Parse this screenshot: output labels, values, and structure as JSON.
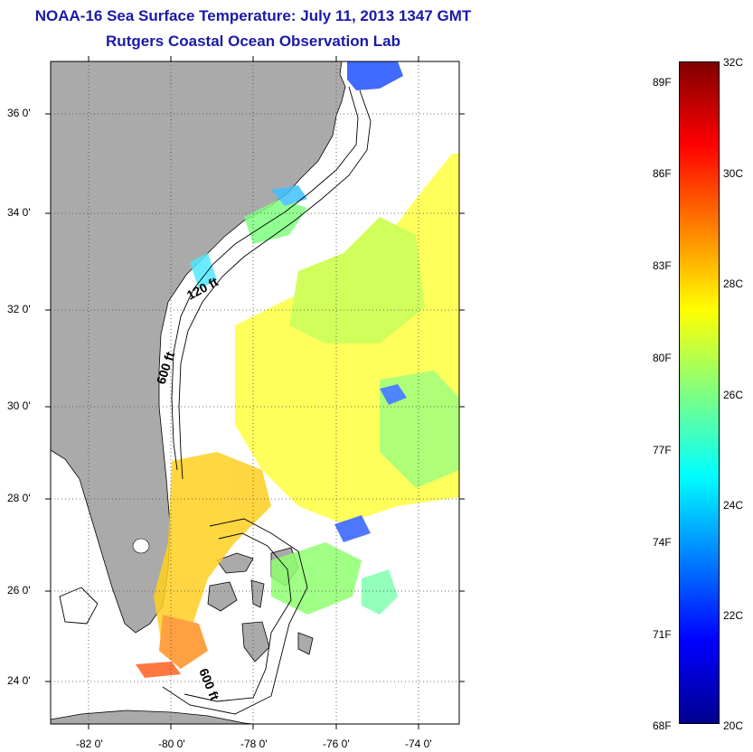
{
  "title": "NOAA-16 Sea Surface Temperature:  July 11, 2013 1347 GMT",
  "subtitle": "Rutgers Coastal Ocean Observation Lab",
  "map": {
    "lat_ticks": [
      "36 0'",
      "34 0'",
      "32 0'",
      "30 0'",
      "28 0'",
      "26 0'",
      "24 0'"
    ],
    "lon_ticks": [
      "-82 0'",
      "-80 0'",
      "-78 0'",
      "-76 0'",
      "-74 0'"
    ],
    "contour_labels": {
      "shelf_120": "120 ft",
      "shelf_600": "600 ft",
      "bahamas_600": "600 ft"
    },
    "land_color": "#aaaaaa",
    "grid": "dotted"
  },
  "colorbar": {
    "celsius": [
      "32C",
      "30C",
      "28C",
      "26C",
      "24C",
      "22C",
      "20C"
    ],
    "fahrenheit": [
      "89F",
      "86F",
      "83F",
      "80F",
      "77F",
      "74F",
      "71F",
      "68F"
    ],
    "range_c": [
      20,
      32
    ]
  }
}
